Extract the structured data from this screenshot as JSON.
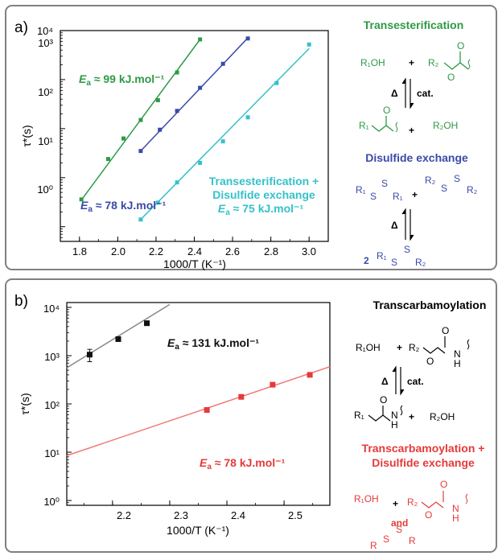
{
  "panels": [
    {
      "letter": "a)",
      "axes": {
        "xlabel": "1000/T (K⁻¹)",
        "ylabel": "τ*(s)",
        "xticks": [
          "1.8",
          "2.0",
          "2.2",
          "2.4",
          "2.6",
          "2.8",
          "3.0"
        ],
        "yticks": [
          "10⁰",
          "10¹",
          "10²",
          "10³",
          "10⁴"
        ]
      },
      "annotations": [
        {
          "prefix": "E",
          "sub": "a",
          "text": " ≈ 99 kJ.mol⁻¹",
          "color": "#2e9a45"
        },
        {
          "prefix": "E",
          "sub": "a",
          "text": " ≈ 78 kJ.mol⁻¹",
          "color": "#3a4aa8"
        },
        {
          "line1": "Transesterification +",
          "line2": "Disulfide exchange",
          "prefix": "E",
          "sub": "a",
          "text": " ≈ 75 kJ.mol⁻¹",
          "color": "#35c1c9"
        }
      ],
      "scheme": {
        "title1": "Transesterification",
        "r1oh": "R₁OH",
        "r2": "R₂",
        "plus": "+",
        "delta": "Δ",
        "cat": "cat.",
        "o": "O",
        "r1": "R₁",
        "r2oh": "R₂OH",
        "title2": "Disulfide exchange",
        "s": "S",
        "two": "2"
      }
    },
    {
      "letter": "b)",
      "axes": {
        "xlabel": "1000/T (K⁻¹)",
        "ylabel": "τ*(s)",
        "xticks": [
          "2.2",
          "2.3",
          "2.4",
          "2.5"
        ],
        "yticks": [
          "10⁰",
          "10¹",
          "10²",
          "10³",
          "10⁴"
        ]
      },
      "annotations": [
        {
          "prefix": "E",
          "sub": "a",
          "text": " ≈ 131 kJ.mol⁻¹",
          "color": "#111111"
        },
        {
          "prefix": "E",
          "sub": "a",
          "text": " ≈ 78 kJ.mol⁻¹",
          "color": "#e53a3a"
        }
      ],
      "scheme": {
        "title1": "Transcarbamoylation",
        "r1oh": "R₁OH",
        "r2": "R₂",
        "r1": "R₁",
        "r2oh": "R₂OH",
        "o": "O",
        "n": "N",
        "h": "H",
        "plus": "+",
        "delta": "Δ",
        "cat": "cat.",
        "title2a": "Transcarbamoylation +",
        "title2b": "Disulfide exchange",
        "and": "and",
        "s": "S",
        "r": "R"
      }
    }
  ],
  "chart_data": [
    {
      "type": "scatter",
      "xlim": [
        1.7,
        3.1
      ],
      "ylim_log10": [
        -0.3,
        4
      ],
      "log_y": true,
      "grid": false,
      "series": [
        {
          "color": "#2e9a45",
          "fit": [
            [
              1.81,
              3.5
            ],
            [
              2.43,
              6600
            ]
          ],
          "points": [
            [
              1.81,
              3.6
            ],
            [
              1.95,
              24
            ],
            [
              2.03,
              63
            ],
            [
              2.12,
              150
            ],
            [
              2.21,
              380
            ],
            [
              2.31,
              1400
            ],
            [
              2.43,
              6600
            ]
          ]
        },
        {
          "color": "#3a4aa8",
          "fit": [
            [
              2.12,
              35
            ],
            [
              2.68,
              7100
            ]
          ],
          "points": [
            [
              2.12,
              35
            ],
            [
              2.22,
              95
            ],
            [
              2.31,
              230
            ],
            [
              2.43,
              680
            ],
            [
              2.55,
              2100
            ],
            [
              2.68,
              6900
            ]
          ]
        },
        {
          "color": "#35c1c9",
          "fit": [
            [
              2.12,
              1.4
            ],
            [
              3.0,
              4300
            ]
          ],
          "points": [
            [
              2.12,
              1.4
            ],
            [
              2.21,
              3.1
            ],
            [
              2.31,
              8
            ],
            [
              2.43,
              20
            ],
            [
              2.55,
              55
            ],
            [
              2.68,
              170
            ],
            [
              2.83,
              850
            ],
            [
              3.0,
              5200
            ]
          ]
        }
      ]
    },
    {
      "type": "scatter",
      "xlim": [
        2.12,
        2.58
      ],
      "ylim_log10": [
        -0.1,
        4.1
      ],
      "log_y": true,
      "grid": false,
      "series": [
        {
          "color": "#111111",
          "fitcolor": "#888888",
          "fit": [
            [
              2.12,
              560
            ],
            [
              2.3,
              11500
            ]
          ],
          "points": [
            [
              2.16,
              1050
            ],
            [
              2.21,
              2200
            ],
            [
              2.26,
              4700
            ]
          ],
          "errors": [
            300,
            0,
            0
          ]
        },
        {
          "color": "#e53a3a",
          "fitcolor": "#f07a7a",
          "fit": [
            [
              2.12,
              8.5
            ],
            [
              2.58,
              590
            ]
          ],
          "points": [
            [
              2.365,
              75
            ],
            [
              2.425,
              140
            ],
            [
              2.48,
              250
            ],
            [
              2.545,
              400
            ]
          ]
        }
      ]
    }
  ]
}
